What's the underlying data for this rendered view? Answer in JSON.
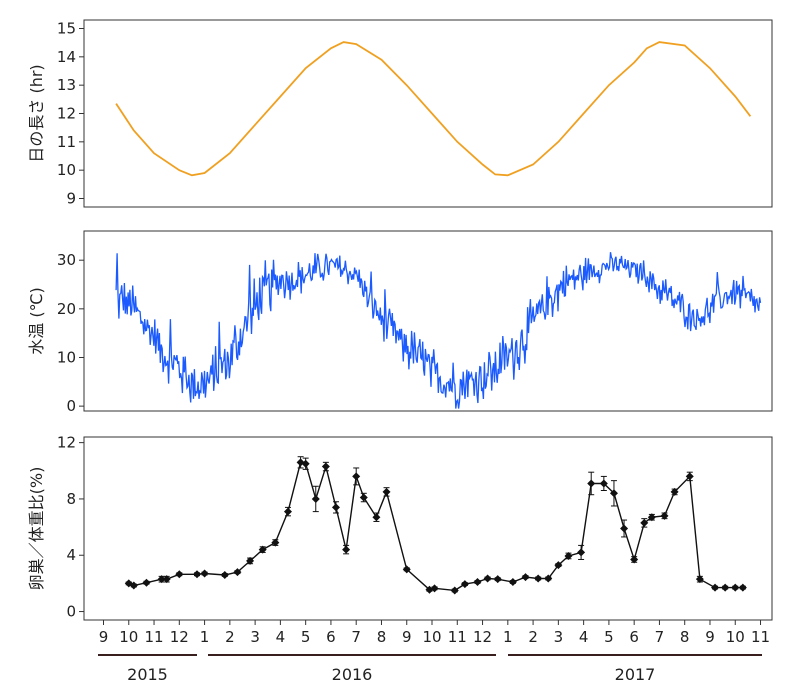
{
  "chart_data": [
    {
      "type": "line",
      "ylabel": "日の長さ (hr)",
      "ylim": [
        8.7,
        15.3
      ],
      "yticks": [
        9,
        10,
        11,
        12,
        13,
        14,
        15
      ],
      "x_unit": "months since 2015-09-01",
      "line_color": "#f0a020",
      "series": [
        {
          "x": [
            0.5,
            1.2,
            2.0,
            3.0,
            3.5,
            4.0,
            5.0,
            6.0,
            7.0,
            8.0,
            9.0,
            9.5,
            10.0,
            11.0,
            12.0,
            13.0,
            14.0,
            15.0,
            15.5,
            16.0,
            17.0,
            18.0,
            19.0,
            20.0,
            21.0,
            21.5,
            22.0,
            23.0,
            24.0,
            25.0,
            25.6
          ],
          "y": [
            12.35,
            11.4,
            10.6,
            10.0,
            9.82,
            9.9,
            10.6,
            11.6,
            12.6,
            13.6,
            14.3,
            14.52,
            14.45,
            13.9,
            13.0,
            12.0,
            11.0,
            10.2,
            9.85,
            9.82,
            10.2,
            11.0,
            12.0,
            13.0,
            13.8,
            14.3,
            14.52,
            14.4,
            13.6,
            12.6,
            11.9
          ]
        }
      ]
    },
    {
      "type": "line",
      "ylabel": "水温 (℃)",
      "ylim": [
        -1,
        36
      ],
      "yticks": [
        0,
        10,
        20,
        30
      ],
      "line_color": "#1a5aff",
      "series": [
        {
          "x": [
            0.5,
            1.0,
            1.5,
            2.0,
            2.5,
            3.0,
            3.5,
            4.0,
            4.5,
            5.0,
            5.5,
            6.0,
            6.5,
            7.0,
            7.5,
            8.0,
            8.5,
            9.0,
            9.5,
            10.0,
            10.5,
            11.0,
            11.5,
            12.0,
            12.5,
            13.0,
            13.5,
            14.0,
            14.5,
            15.0,
            15.5,
            16.0,
            16.5,
            17.0,
            17.5,
            18.0,
            18.5,
            19.0,
            19.5,
            20.0,
            20.5,
            21.0,
            21.5,
            22.0,
            22.5,
            23.0,
            23.5,
            24.0,
            24.5,
            25.0,
            25.5,
            26.0
          ],
          "y": [
            22,
            21,
            18,
            14,
            10,
            8,
            5,
            4,
            7,
            10,
            15,
            20,
            24,
            26,
            26,
            27,
            28,
            29,
            28,
            27,
            22,
            18,
            15,
            12,
            10,
            7,
            5,
            4,
            5,
            6,
            8,
            10,
            13,
            17,
            21,
            24,
            26,
            27,
            28,
            29,
            29,
            28,
            27,
            24,
            22,
            20,
            18,
            20,
            22,
            24,
            22,
            20
          ],
          "amplitude": [
            6,
            5,
            5,
            5,
            5,
            6,
            6,
            6,
            6,
            7,
            7,
            7,
            7,
            5,
            4,
            4,
            4,
            3,
            3,
            3,
            4,
            4,
            5,
            5,
            5,
            6,
            6,
            6,
            6,
            6,
            6,
            6,
            7,
            6,
            6,
            5,
            4,
            4,
            3,
            3,
            3,
            3,
            3,
            4,
            4,
            4,
            4,
            4,
            4,
            4,
            4,
            4
          ]
        }
      ]
    },
    {
      "type": "line",
      "ylabel": "卵巣／体重比(%)",
      "ylim": [
        -0.6,
        12.4
      ],
      "yticks": [
        0,
        4,
        8,
        12
      ],
      "x_ticks": [
        "9",
        "10",
        "11",
        "12",
        "1",
        "2",
        "3",
        "4",
        "5",
        "6",
        "7",
        "8",
        "9",
        "10",
        "11",
        "12",
        "1",
        "2",
        "3",
        "4",
        "5",
        "6",
        "7",
        "8",
        "9",
        "10",
        "11"
      ],
      "years": [
        "2015",
        "2016",
        "2017"
      ],
      "line_color": "#111111",
      "series": [
        {
          "x": [
            1.0,
            1.2,
            1.7,
            2.3,
            2.5,
            3.0,
            3.7,
            4.0,
            4.8,
            5.3,
            5.8,
            6.3,
            6.8,
            7.3,
            7.8,
            8.0,
            8.4,
            8.8,
            9.2,
            9.6,
            10.0,
            10.3,
            10.8,
            11.2,
            12.0,
            12.9,
            13.1,
            13.9,
            14.3,
            14.8,
            15.2,
            15.6,
            16.2,
            16.7,
            17.2,
            17.6,
            18.0,
            18.4,
            18.9,
            19.3,
            19.8,
            20.2,
            20.6,
            21.0,
            21.4,
            21.7,
            22.2,
            22.6,
            23.2,
            23.6,
            24.2,
            24.6,
            25.0,
            25.3
          ],
          "y": [
            2.0,
            1.85,
            2.05,
            2.3,
            2.3,
            2.65,
            2.65,
            2.7,
            2.6,
            2.8,
            3.6,
            4.4,
            4.9,
            7.1,
            10.6,
            10.5,
            8.0,
            10.3,
            7.4,
            4.4,
            9.6,
            8.1,
            6.7,
            8.5,
            3.0,
            1.55,
            1.65,
            1.5,
            1.95,
            2.1,
            2.35,
            2.3,
            2.1,
            2.45,
            2.35,
            2.35,
            3.3,
            3.95,
            4.2,
            9.1,
            9.1,
            8.4,
            5.9,
            3.7,
            6.3,
            6.7,
            6.8,
            8.5,
            9.6,
            2.3,
            1.7,
            1.7,
            1.7,
            1.7
          ],
          "error": [
            0.1,
            0.1,
            0.1,
            0.2,
            0.2,
            0.1,
            0.1,
            0.1,
            0.1,
            0.1,
            0.2,
            0.2,
            0.2,
            0.3,
            0.4,
            0.4,
            0.9,
            0.3,
            0.4,
            0.3,
            0.6,
            0.3,
            0.3,
            0.3,
            0.1,
            0.1,
            0.1,
            0.1,
            0.1,
            0.1,
            0.1,
            0.1,
            0.1,
            0.1,
            0.1,
            0.1,
            0.1,
            0.2,
            0.5,
            0.8,
            0.5,
            0.9,
            0.6,
            0.2,
            0.3,
            0.2,
            0.2,
            0.2,
            0.3,
            0.2,
            0.1,
            0.1,
            0.1,
            0.1
          ]
        }
      ]
    }
  ]
}
